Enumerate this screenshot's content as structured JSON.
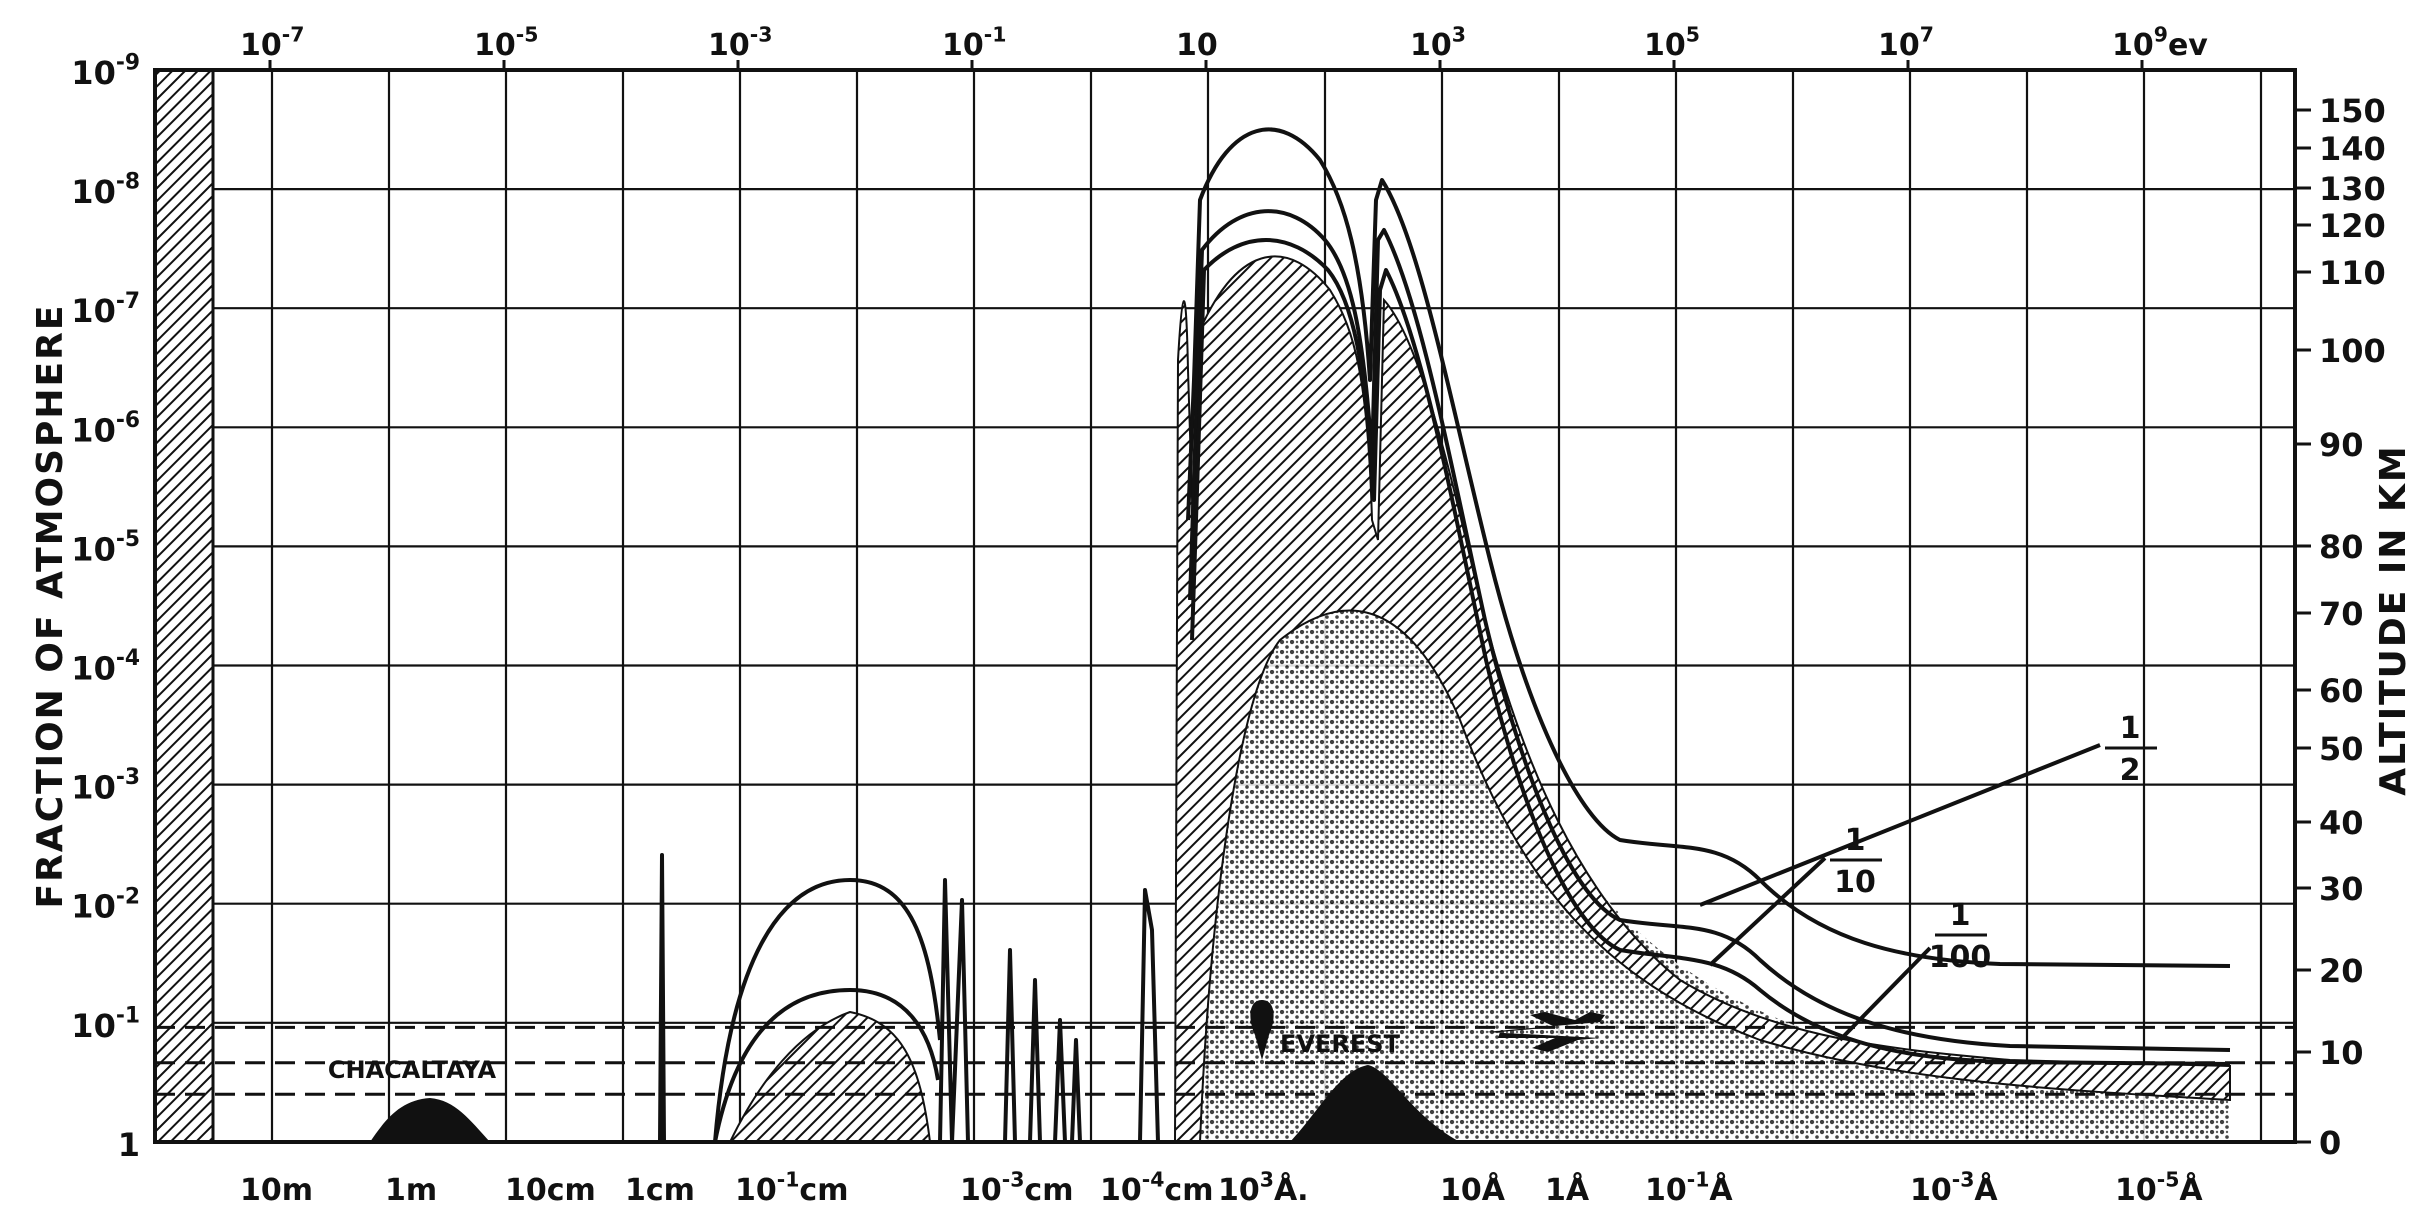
{
  "chart_data": {
    "type": "area",
    "title": "",
    "ylabel_left": "FRACTION OF ATMOSPHERE",
    "ylabel_right": "ALTITUDE IN KM",
    "y_left_ticks": [
      {
        "base": "10",
        "exp": "-9"
      },
      {
        "base": "10",
        "exp": "-8"
      },
      {
        "base": "10",
        "exp": "-7"
      },
      {
        "base": "10",
        "exp": "-6"
      },
      {
        "base": "10",
        "exp": "-5"
      },
      {
        "base": "10",
        "exp": "-4"
      },
      {
        "base": "10",
        "exp": "-3"
      },
      {
        "base": "10",
        "exp": "-2"
      },
      {
        "base": "10",
        "exp": "-1"
      },
      {
        "base": "1",
        "exp": ""
      }
    ],
    "y_left_log_exponents": [
      -9,
      -8,
      -7,
      -6,
      -5,
      -4,
      -3,
      -2,
      -1,
      0
    ],
    "y_right_ticks": [
      "150",
      "140",
      "130",
      "120",
      "110",
      "100",
      "90",
      "80",
      "70",
      "60",
      "50",
      "40",
      "30",
      "20",
      "10",
      "0"
    ],
    "x_top_ticks": [
      {
        "base": "10",
        "exp": "-7"
      },
      {
        "base": "10",
        "exp": "-5"
      },
      {
        "base": "10",
        "exp": "-3"
      },
      {
        "base": "10",
        "exp": "-1"
      },
      {
        "base": "10",
        "exp": ""
      },
      {
        "base": "10",
        "exp": "3"
      },
      {
        "base": "10",
        "exp": "5"
      },
      {
        "base": "10",
        "exp": "7"
      },
      {
        "base": "10",
        "exp": "9",
        "suffix": "ev"
      }
    ],
    "x_bottom_ticks": [
      {
        "text": "10m"
      },
      {
        "text": "1m"
      },
      {
        "text": "10cm"
      },
      {
        "text": "1cm"
      },
      {
        "text": "10",
        "exp": "-1",
        "suffix": "cm"
      },
      {
        "text": "10",
        "exp": "-3",
        "suffix": "cm"
      },
      {
        "text": "10",
        "exp": "-4",
        "suffix": "cm"
      },
      {
        "text": "10",
        "exp": "3",
        "suffix": "Å."
      },
      {
        "text": "10Å"
      },
      {
        "text": "1Å"
      },
      {
        "text": "10",
        "exp": "-1",
        "suffix": "Å"
      },
      {
        "text": "10",
        "exp": "-3",
        "suffix": "Å"
      },
      {
        "text": "10",
        "exp": "-5",
        "suffix": "Å"
      }
    ],
    "series": [
      {
        "name": "1/2",
        "label_num": "1",
        "label_den": "2"
      },
      {
        "name": "1/10",
        "label_num": "1",
        "label_den": "10"
      },
      {
        "name": "1/100",
        "label_num": "1",
        "label_den": "100"
      }
    ],
    "annotations": {
      "chacaltaya": "CHACALTAYA",
      "everest": "EVEREST"
    },
    "grid": true,
    "dashed_reference_altitudes_km": [
      5.3,
      8.8,
      13
    ]
  }
}
